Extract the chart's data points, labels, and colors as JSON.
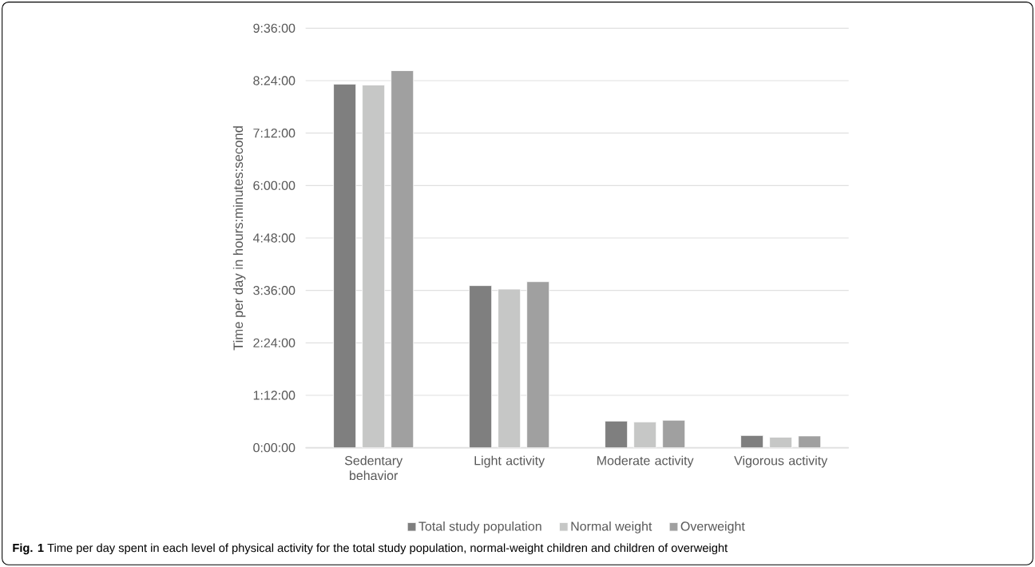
{
  "chart_data": {
    "type": "bar",
    "categories": [
      "Sedentary behavior",
      "Light activity",
      "Moderate activity",
      "Vigorous activity"
    ],
    "ylabel": "Time per day in hours:minutes:second",
    "series": [
      {
        "name": "Total study population",
        "color": "#7f7f7f",
        "values": [
          8.32,
          3.71,
          0.61,
          0.28
        ]
      },
      {
        "name": "Normal weight",
        "color": "#c6c7c6",
        "values": [
          8.3,
          3.63,
          0.59,
          0.24
        ]
      },
      {
        "name": "Overweight",
        "color": "#a0a0a0",
        "values": [
          8.63,
          3.8,
          0.63,
          0.27
        ]
      }
    ],
    "ylim": [
      0,
      9.6
    ],
    "yticks": [
      {
        "value": 0,
        "label": "0:00:00"
      },
      {
        "value": 1.2,
        "label": "1:12:00"
      },
      {
        "value": 2.4,
        "label": "2:24:00"
      },
      {
        "value": 3.6,
        "label": "3:36:00"
      },
      {
        "value": 4.8,
        "label": "4:48:00"
      },
      {
        "value": 6.0,
        "label": "6:00:00"
      },
      {
        "value": 7.2,
        "label": "7:12:00"
      },
      {
        "value": 8.4,
        "label": "8:24:00"
      },
      {
        "value": 9.6,
        "label": "9:36:00"
      }
    ],
    "grid": "y",
    "legend": "bottom",
    "annotations": [
      "**Fig. 1** Time per day spent in each level of physical activity for the total study population, normal-weight children and children of overweight"
    ]
  }
}
